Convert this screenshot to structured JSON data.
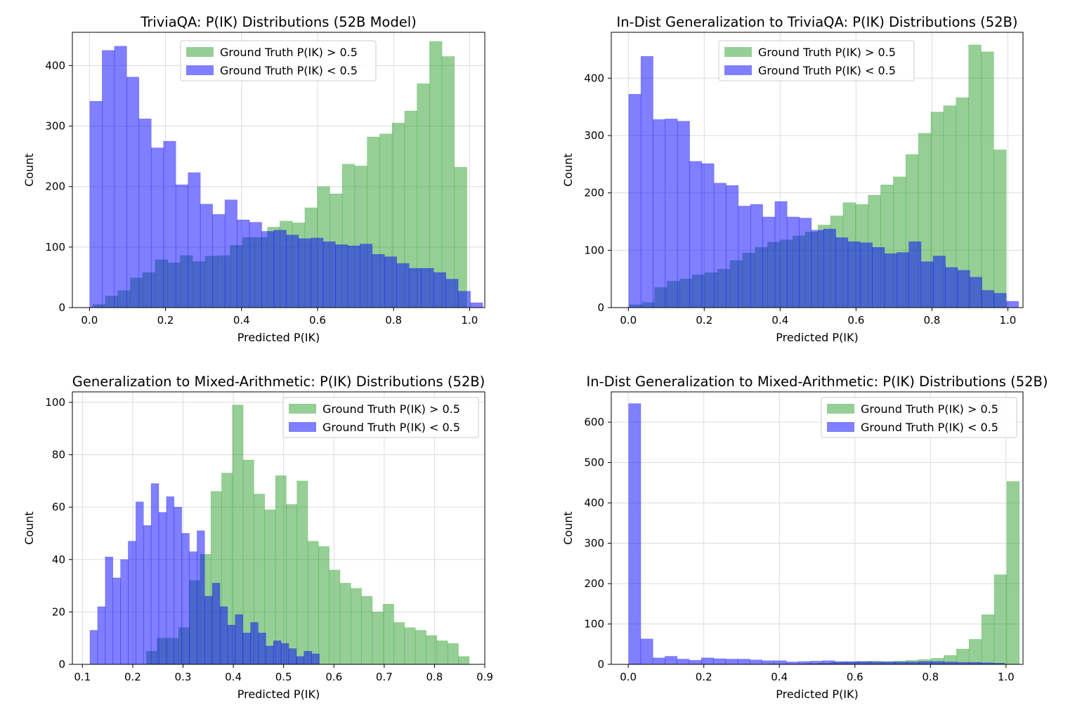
{
  "colors": {
    "green": "#2ca02c",
    "blue": "#0000ff",
    "bar_alpha": 0.5
  },
  "chart_data": [
    {
      "type": "bar",
      "title": "TriviaQA: P(IK) Distributions (52B Model)",
      "xlabel": "Predicted P(IK)",
      "ylabel": "Count",
      "xlim": [
        -0.045,
        1.04
      ],
      "ylim": [
        0,
        455
      ],
      "xticks": [
        0.0,
        0.2,
        0.4,
        0.6,
        0.8,
        1.0
      ],
      "xtick_labels": [
        "0.0",
        "0.2",
        "0.4",
        "0.6",
        "0.8",
        "1.0"
      ],
      "yticks": [
        0,
        100,
        200,
        300,
        400
      ],
      "ytick_labels": [
        "0",
        "100",
        "200",
        "300",
        "400"
      ],
      "grid": true,
      "legend": "top-center",
      "series": [
        {
          "name": "Ground Truth P(IK) > 0.5",
          "color": "green",
          "bin_start": 0.009,
          "bin_width": 0.0328,
          "values": [
            5,
            19,
            28,
            49,
            58,
            79,
            74,
            86,
            76,
            85,
            86,
            103,
            116,
            116,
            133,
            143,
            140,
            165,
            200,
            188,
            237,
            234,
            282,
            287,
            305,
            325,
            370,
            440,
            415,
            232
          ]
        },
        {
          "name": "Ground Truth P(IK) < 0.5",
          "color": "blue",
          "bin_start": 0.001,
          "bin_width": 0.0323,
          "values": [
            341,
            425,
            432,
            381,
            312,
            264,
            275,
            203,
            223,
            171,
            154,
            178,
            145,
            141,
            126,
            128,
            120,
            114,
            115,
            109,
            104,
            102,
            105,
            88,
            84,
            73,
            65,
            65,
            58,
            47,
            27,
            8
          ]
        }
      ]
    },
    {
      "type": "bar",
      "title": "In-Dist Generalization to TriviaQA: P(IK) Distributions (52B)",
      "xlabel": "Predicted P(IK)",
      "ylabel": "Count",
      "xlim": [
        -0.045,
        1.04
      ],
      "ylim": [
        0,
        480
      ],
      "xticks": [
        0.0,
        0.2,
        0.4,
        0.6,
        0.8,
        1.0
      ],
      "xtick_labels": [
        "0.0",
        "0.2",
        "0.4",
        "0.6",
        "0.8",
        "1.0"
      ],
      "yticks": [
        0,
        100,
        200,
        300,
        400
      ],
      "ytick_labels": [
        "0",
        "100",
        "200",
        "300",
        "400"
      ],
      "grid": true,
      "legend": "top-center",
      "series": [
        {
          "name": "Ground Truth P(IK) > 0.5",
          "color": "green",
          "bin_start": 0.003,
          "bin_width": 0.0331,
          "values": [
            5,
            9,
            35,
            46,
            50,
            57,
            61,
            67,
            82,
            95,
            105,
            114,
            118,
            125,
            132,
            144,
            160,
            183,
            180,
            196,
            214,
            228,
            267,
            304,
            341,
            352,
            366,
            458,
            446,
            275
          ]
        },
        {
          "name": "Ground Truth P(IK) < 0.5",
          "color": "blue",
          "bin_start": 0.001,
          "bin_width": 0.0321,
          "values": [
            372,
            438,
            328,
            329,
            325,
            255,
            251,
            217,
            213,
            177,
            180,
            158,
            185,
            158,
            156,
            135,
            137,
            122,
            115,
            113,
            105,
            94,
            96,
            115,
            80,
            90,
            70,
            65,
            53,
            30,
            25,
            11
          ]
        }
      ]
    },
    {
      "type": "bar",
      "title": "Generalization to Mixed-Arithmetic: P(IK) Distributions (52B)",
      "xlabel": "Predicted P(IK)",
      "ylabel": "Count",
      "xlim": [
        0.08,
        0.9
      ],
      "ylim": [
        0,
        104
      ],
      "xticks": [
        0.1,
        0.2,
        0.3,
        0.4,
        0.5,
        0.6,
        0.7,
        0.8,
        0.9
      ],
      "xtick_labels": [
        "0.1",
        "0.2",
        "0.3",
        "0.4",
        "0.5",
        "0.6",
        "0.7",
        "0.8",
        "0.9"
      ],
      "yticks": [
        0,
        20,
        40,
        60,
        80,
        100
      ],
      "ytick_labels": [
        "0",
        "20",
        "40",
        "60",
        "80",
        "100"
      ],
      "grid": true,
      "legend": "top-right",
      "series": [
        {
          "name": "Ground Truth P(IK) > 0.5",
          "color": "green",
          "bin_start": 0.227,
          "bin_width": 0.0214,
          "values": [
            5,
            10,
            10,
            14,
            32,
            42,
            66,
            73,
            99,
            78,
            65,
            59,
            72,
            61,
            70,
            47,
            45,
            36,
            31,
            29,
            26,
            20,
            23,
            16,
            14,
            13,
            11,
            9,
            8,
            3
          ]
        },
        {
          "name": "Ground Truth P(IK) < 0.5",
          "color": "blue",
          "bin_start": 0.115,
          "bin_width": 0.0152,
          "values": [
            13,
            22,
            41,
            33,
            40,
            47,
            62,
            53,
            69,
            58,
            64,
            60,
            50,
            43,
            51,
            26,
            31,
            22,
            15,
            19,
            12,
            16,
            12,
            7,
            9,
            8,
            6,
            3,
            5,
            4
          ]
        }
      ]
    },
    {
      "type": "bar",
      "title": "In-Dist Generalization to Mixed-Arithmetic: P(IK) Distributions (52B)",
      "xlabel": "Predicted P(IK)",
      "ylabel": "Count",
      "xlim": [
        -0.045,
        1.045
      ],
      "ylim": [
        0,
        675
      ],
      "xticks": [
        0.0,
        0.2,
        0.4,
        0.6,
        0.8,
        1.0
      ],
      "xtick_labels": [
        "0.0",
        "0.2",
        "0.4",
        "0.6",
        "0.8",
        "1.0"
      ],
      "yticks": [
        0,
        100,
        200,
        300,
        400,
        500,
        600
      ],
      "ytick_labels": [
        "0",
        "100",
        "200",
        "300",
        "400",
        "500",
        "600"
      ],
      "grid": true,
      "legend": "top-right",
      "series": [
        {
          "name": "Ground Truth P(IK) > 0.5",
          "color": "green",
          "bin_start": 0.003,
          "bin_width": 0.0333,
          "values": [
            1,
            0,
            0,
            0,
            0,
            1,
            0,
            1,
            0,
            1,
            0,
            1,
            1,
            1,
            2,
            3,
            5,
            5,
            7,
            8,
            7,
            8,
            10,
            12,
            15,
            22,
            38,
            62,
            123,
            222,
            453
          ]
        },
        {
          "name": "Ground Truth P(IK) < 0.5",
          "color": "blue",
          "bin_start": 0.001,
          "bin_width": 0.0321,
          "values": [
            646,
            63,
            16,
            20,
            13,
            10,
            16,
            14,
            13,
            13,
            11,
            9,
            9,
            6,
            7,
            8,
            9,
            7,
            7,
            7,
            6,
            6,
            6,
            6,
            7,
            7,
            6,
            5,
            5,
            4,
            3
          ]
        }
      ]
    }
  ]
}
